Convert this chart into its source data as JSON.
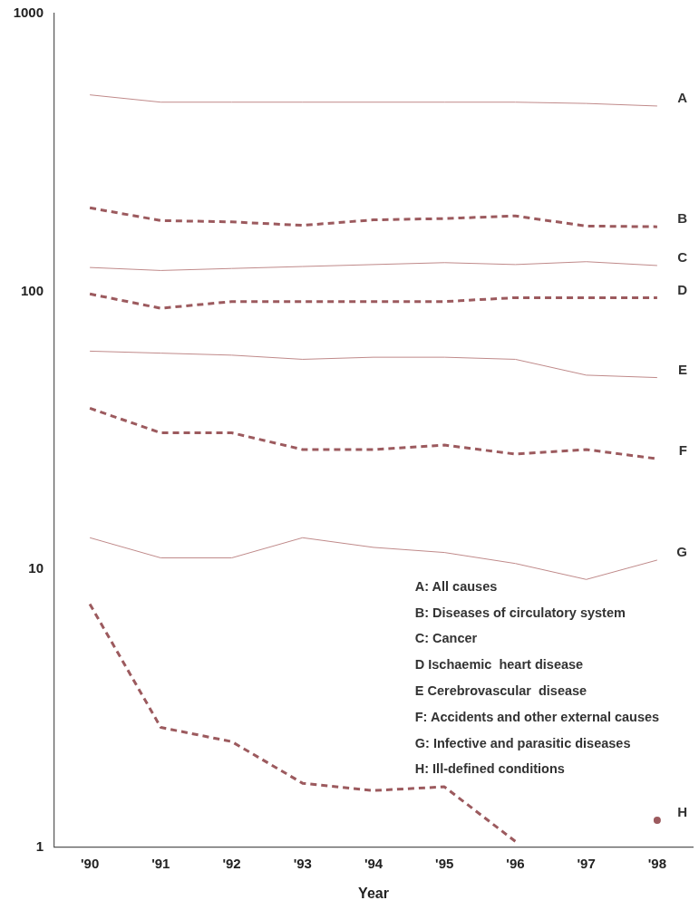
{
  "chart_data": {
    "type": "line",
    "xlabel": "Year",
    "categories": [
      "'90",
      "'91",
      "'92",
      "'93",
      "'94",
      "'95",
      "'96",
      "'97",
      "'98"
    ],
    "ylim": [
      1,
      1000
    ],
    "yticks": [
      1,
      10,
      100,
      1000
    ],
    "log": true,
    "grid": false,
    "legend": false,
    "marker": "none",
    "series": [
      {
        "name": "A",
        "color": "#c08a8a",
        "line_style": "solid",
        "values": [
          510,
          480,
          480,
          480,
          480,
          480,
          480,
          475,
          465
        ]
      },
      {
        "name": "B",
        "color": "#9c5a5e",
        "line_style": "dashed",
        "values": [
          200,
          180,
          178,
          173,
          181,
          183,
          187,
          172,
          171
        ]
      },
      {
        "name": "C",
        "color": "#c08a8a",
        "line_style": "solid",
        "values": [
          122,
          119,
          121,
          123,
          125,
          127,
          125,
          128,
          124
        ]
      },
      {
        "name": "D",
        "color": "#9c5a5e",
        "line_style": "dashed",
        "values": [
          98,
          87,
          92,
          92,
          92,
          92,
          95,
          95,
          95
        ]
      },
      {
        "name": "E",
        "color": "#c08a8a",
        "line_style": "solid",
        "values": [
          61,
          60,
          59,
          57,
          58,
          58,
          57,
          50,
          49
        ]
      },
      {
        "name": "F",
        "color": "#9c5a5e",
        "line_style": "dashed",
        "values": [
          38,
          31,
          31,
          27,
          27,
          28,
          26,
          27,
          25
        ]
      },
      {
        "name": "G",
        "color": "#c08a8a",
        "line_style": "solid",
        "values": [
          13,
          11,
          11,
          13,
          12,
          11.5,
          10.5,
          9.2,
          10.8
        ]
      },
      {
        "name": "H",
        "color": "#9c5a5e",
        "line_style": "dashed",
        "values": [
          7.5,
          2.7,
          2.4,
          1.7,
          1.6,
          1.65,
          1.05,
          null,
          1.25
        ]
      }
    ],
    "annotations": [
      "A: All causes",
      "B: Diseases of circulatory system",
      "C: Cancer",
      "D Ischaemic  heart disease",
      "E Cerebrovascular  disease",
      "F: Accidents and other external causes",
      "G: Infective and parasitic diseases",
      "H: Ill-defined conditions"
    ]
  }
}
